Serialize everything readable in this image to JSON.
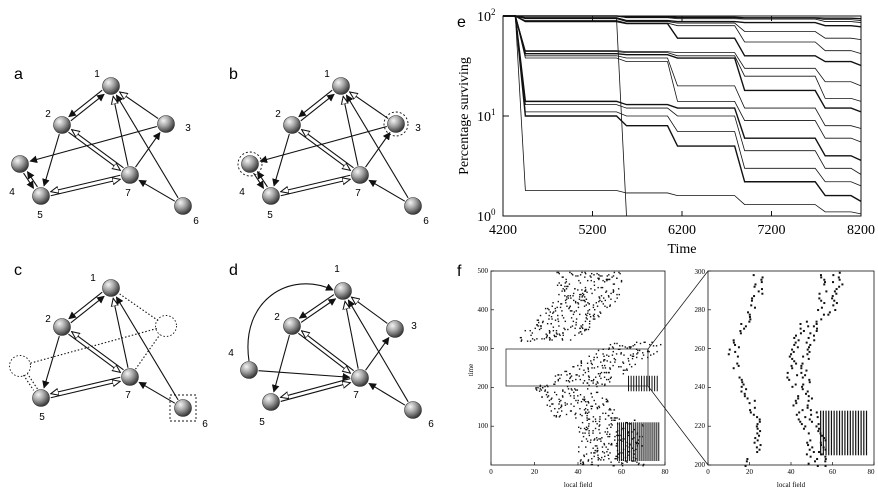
{
  "panels": {
    "a": {
      "letter": "a"
    },
    "b": {
      "letter": "b"
    },
    "c": {
      "letter": "c"
    },
    "d": {
      "letter": "d"
    },
    "e": {
      "letter": "e"
    },
    "f": {
      "letter": "f"
    }
  },
  "node_labels": {
    "n1": "1",
    "n2": "2",
    "n3": "3",
    "n4": "4",
    "n5": "5",
    "n6": "6",
    "n7": "7"
  },
  "colors": {
    "node_fill": "#9a9a9a",
    "line": "#111111"
  },
  "chart_data": [
    {
      "type": "line",
      "title": "",
      "xlabel": "Time",
      "ylabel": "Percentage surviving",
      "xlim": [
        4200,
        8200
      ],
      "ylim": [
        1,
        100
      ],
      "yscale": "log",
      "x_ticks": [
        "4200",
        "5200",
        "6200",
        "7200",
        "8200"
      ],
      "y_ticks": [
        "10^0",
        "10^1",
        "10^2"
      ],
      "y_tick_base": "10",
      "y_tick_exps": [
        "0",
        "1",
        "2"
      ],
      "x_breaks": [
        4200,
        4450,
        5580,
        6150,
        6900,
        7800,
        8200
      ],
      "series": [
        {
          "values": [
            100,
            100,
            98,
            97,
            96,
            95,
            94
          ]
        },
        {
          "values": [
            100,
            100,
            97,
            96,
            95,
            92,
            90
          ]
        },
        {
          "values": [
            100,
            100,
            96,
            94,
            93,
            88,
            86
          ]
        },
        {
          "values": [
            100,
            96,
            90,
            88,
            86,
            80,
            78
          ]
        },
        {
          "values": [
            100,
            94,
            88,
            85,
            70,
            60,
            58
          ]
        },
        {
          "values": [
            100,
            90,
            85,
            80,
            55,
            45,
            42
          ]
        },
        {
          "values": [
            100,
            88,
            84,
            60,
            40,
            35,
            32
          ]
        },
        {
          "values": [
            100,
            45,
            44,
            43,
            30,
            22,
            20
          ]
        },
        {
          "values": [
            100,
            44,
            43,
            40,
            25,
            15,
            14
          ]
        },
        {
          "values": [
            100,
            42,
            41,
            38,
            18,
            12,
            11
          ]
        },
        {
          "values": [
            100,
            40,
            38,
            20,
            12,
            8,
            7.5
          ]
        },
        {
          "values": [
            100,
            38,
            35,
            14,
            9,
            6,
            5.5
          ]
        },
        {
          "values": [
            100,
            14,
            13,
            12,
            6,
            4,
            3.6
          ]
        },
        {
          "values": [
            100,
            13,
            12,
            10,
            4.5,
            3,
            2.6
          ]
        },
        {
          "values": [
            100,
            11,
            10,
            7,
            3,
            2.2,
            2.0
          ]
        },
        {
          "values": [
            100,
            10,
            8,
            5,
            2.2,
            1.6,
            1.4
          ]
        },
        {
          "values": [
            100,
            1.8,
            1.7,
            1.6,
            1.3,
            1.1,
            1.05
          ]
        },
        {
          "values": [
            100,
            95,
            1,
            1,
            1,
            1,
            1
          ]
        }
      ]
    },
    {
      "type": "scatter",
      "title": "",
      "xlabel": "local field",
      "ylabel": "time",
      "xlim": [
        0,
        80
      ],
      "ylim": [
        0,
        500
      ],
      "x_ticks": [
        "0",
        "20",
        "40",
        "60",
        "80"
      ],
      "y_ticks": [
        "100",
        "200",
        "300",
        "400",
        "500"
      ]
    },
    {
      "type": "scatter",
      "title": "",
      "xlabel": "local field",
      "ylabel": "",
      "xlim": [
        0,
        80
      ],
      "ylim": [
        200,
        300
      ],
      "x_ticks": [
        "0",
        "20",
        "40",
        "60",
        "80"
      ],
      "y_ticks": [
        "200",
        "220",
        "240",
        "260",
        "280",
        "300"
      ]
    }
  ]
}
